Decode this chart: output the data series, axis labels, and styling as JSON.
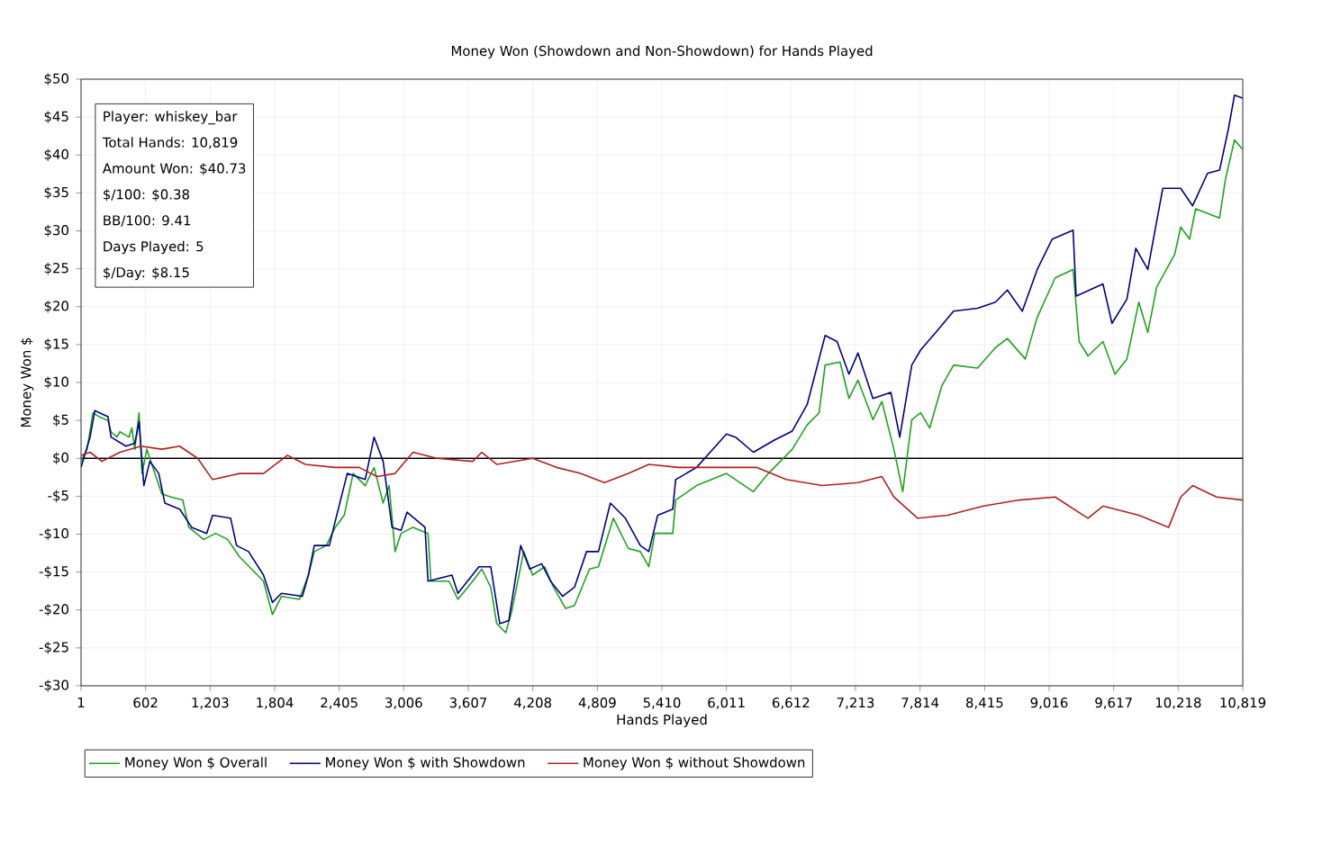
{
  "chart_data": {
    "type": "line",
    "title": "Money Won (Showdown and Non-Showdown) for Hands Played",
    "xlabel": "Hands Played",
    "ylabel": "Money Won $",
    "annotations": [
      "Player: whiskey_bar",
      "Total Hands: 10,819",
      "Amount Won: $40.73",
      "$/100: $0.38",
      "BB/100: 9.41",
      "Days Played: 5",
      "$/Day: $8.15"
    ],
    "xlim": [
      1,
      10819
    ],
    "ylim": [
      -30,
      50
    ],
    "xticks": [
      1,
      602,
      {
        "value": 1203,
        "label": "1,203"
      },
      {
        "value": 1804,
        "label": "1,804"
      },
      {
        "value": 2405,
        "label": "2,405"
      },
      {
        "value": 3006,
        "label": "3,006"
      },
      {
        "value": 3607,
        "label": "3,607"
      },
      {
        "value": 4208,
        "label": "4,208"
      },
      {
        "value": 4809,
        "label": "4,809"
      },
      {
        "value": 5410,
        "label": "5,410"
      },
      {
        "value": 6011,
        "label": "6,011"
      },
      {
        "value": 6612,
        "label": "6,612"
      },
      {
        "value": 7213,
        "label": "7,213"
      },
      {
        "value": 7814,
        "label": "7,814"
      },
      {
        "value": 8415,
        "label": "8,415"
      },
      {
        "value": 9016,
        "label": "9,016"
      },
      {
        "value": 9617,
        "label": "9,617"
      },
      {
        "value": 10218,
        "label": "10,218"
      },
      {
        "value": 10819,
        "label": "10,819"
      }
    ],
    "yticks": [
      {
        "value": -30,
        "label": "-$30"
      },
      {
        "value": -25,
        "label": "-$25"
      },
      {
        "value": -20,
        "label": "-$20"
      },
      {
        "value": -15,
        "label": "-$15"
      },
      {
        "value": -10,
        "label": "-$10"
      },
      {
        "value": -5,
        "label": "-$5"
      },
      {
        "value": 0,
        "label": "$0"
      },
      {
        "value": 5,
        "label": "$5"
      },
      {
        "value": 10,
        "label": "$10"
      },
      {
        "value": 15,
        "label": "$15"
      },
      {
        "value": 20,
        "label": "$20"
      },
      {
        "value": 25,
        "label": "$25"
      },
      {
        "value": 30,
        "label": "$30"
      },
      {
        "value": 35,
        "label": "$35"
      },
      {
        "value": 40,
        "label": "$40"
      },
      {
        "value": 45,
        "label": "$45"
      },
      {
        "value": 50,
        "label": "$50"
      }
    ],
    "grid": true,
    "legend": "bottom",
    "marker": "none",
    "line_style": "solid",
    "ref_lines": [
      {
        "axis": "y",
        "value": 0,
        "color": "#000000"
      }
    ],
    "series": [
      {
        "name": "Money Won $ Overall",
        "color": "#21a121",
        "x": [
          1,
          57,
          112,
          168,
          252,
          280,
          335,
          363,
          447,
          474,
          502,
          541,
          569,
          614,
          669,
          753,
          837,
          948,
          1004,
          1143,
          1254,
          1366,
          1477,
          1588,
          1700,
          1783,
          1867,
          2034,
          2118,
          2173,
          2285,
          2368,
          2452,
          2535,
          2647,
          2730,
          2814,
          2870,
          2925,
          2981,
          3092,
          3232,
          3259,
          3427,
          3510,
          3649,
          3733,
          3816,
          3872,
          3956,
          4011,
          4123,
          4206,
          4318,
          4401,
          4513,
          4596,
          4736,
          4819,
          4958,
          5098,
          5209,
          5288,
          5344,
          5511,
          5538,
          5733,
          6011,
          6095,
          6262,
          6401,
          6624,
          6763,
          6874,
          6930,
          7069,
          7152,
          7236,
          7375,
          7458,
          7570,
          7653,
          7737,
          7820,
          7904,
          8015,
          8126,
          8349,
          8516,
          8627,
          8794,
          8905,
          9072,
          9239,
          9295,
          9378,
          9517,
          9629,
          9740,
          9851,
          9935,
          10018,
          10185,
          10241,
          10324,
          10380,
          10603,
          10658,
          10742,
          10819
        ],
        "values": [
          -0.4,
          1.2,
          6,
          5.5,
          5,
          3.5,
          2.8,
          3.5,
          2.8,
          4,
          1.2,
          6,
          -2,
          1.2,
          -1.2,
          -4.7,
          -5.1,
          -5.5,
          -9.1,
          -10.7,
          -9.9,
          -10.7,
          -13,
          -14.6,
          -16.2,
          -20.6,
          -18.2,
          -18.6,
          -15.4,
          -12.3,
          -11.5,
          -9.1,
          -7.5,
          -2,
          -3.6,
          -1.2,
          -5.9,
          -3.6,
          -12.3,
          -9.9,
          -9.1,
          -9.9,
          -16.2,
          -16.2,
          -18.6,
          -16.2,
          -14.6,
          -17,
          -21.8,
          -23,
          -20.2,
          -12.3,
          -15.4,
          -14.3,
          -17,
          -19.8,
          -19.4,
          -14.6,
          -14.3,
          -7.9,
          -11.9,
          -12.3,
          -14.3,
          -9.9,
          -9.9,
          -5.5,
          -3.6,
          -2,
          -2.8,
          -4.4,
          -2,
          1.2,
          4.4,
          6,
          12.3,
          12.7,
          7.9,
          10.3,
          5.1,
          7.5,
          1.2,
          -4.4,
          5.1,
          6,
          4,
          9.5,
          12.3,
          11.9,
          14.6,
          15.8,
          13.1,
          18.6,
          23.8,
          24.9,
          15.4,
          13.5,
          15.4,
          11.1,
          13.1,
          20.6,
          16.6,
          22.6,
          26.9,
          30.5,
          28.9,
          32.9,
          31.7,
          36.8,
          42,
          40.7
        ]
      },
      {
        "name": "Money Won $ with Showdown",
        "color": "#000080",
        "x": [
          1,
          85,
          129,
          252,
          280,
          419,
          502,
          541,
          586,
          642,
          725,
          781,
          920,
          1031,
          1171,
          1226,
          1394,
          1449,
          1561,
          1700,
          1783,
          1867,
          2062,
          2118,
          2173,
          2313,
          2368,
          2480,
          2647,
          2730,
          2814,
          2897,
          2981,
          3037,
          3204,
          3232,
          3455,
          3510,
          3706,
          3816,
          3900,
          3984,
          4095,
          4179,
          4290,
          4373,
          4485,
          4596,
          4708,
          4819,
          4930,
          5070,
          5209,
          5288,
          5371,
          5511,
          5538,
          5733,
          6011,
          6095,
          6262,
          6457,
          6624,
          6763,
          6930,
          7041,
          7152,
          7236,
          7375,
          7542,
          7625,
          7737,
          7820,
          7959,
          8126,
          8349,
          8516,
          8627,
          8766,
          8905,
          9044,
          9239,
          9267,
          9517,
          9601,
          9740,
          9823,
          9935,
          10074,
          10241,
          10352,
          10491,
          10603,
          10686,
          10742,
          10819
        ],
        "values": [
          -1.2,
          2.8,
          6.3,
          5.5,
          2.8,
          1.6,
          2,
          4.8,
          -3.6,
          -0.4,
          -2,
          -5.9,
          -6.7,
          -9.1,
          -9.9,
          -7.5,
          -7.9,
          -11.5,
          -12.3,
          -15.4,
          -19,
          -17.8,
          -18.2,
          -15.4,
          -11.5,
          -11.5,
          -8.3,
          -2,
          -2.8,
          2.8,
          -0.4,
          -9.1,
          -9.5,
          -7.1,
          -9.1,
          -16.2,
          -15.4,
          -17.8,
          -14.3,
          -14.3,
          -21.8,
          -21.4,
          -11.5,
          -14.6,
          -13.9,
          -16.2,
          -18.2,
          -17,
          -12.3,
          -12.3,
          -5.9,
          -7.9,
          -11.5,
          -12.3,
          -7.5,
          -6.7,
          -2.8,
          -1.2,
          3.2,
          2.8,
          0.8,
          2.4,
          3.6,
          7.1,
          16.2,
          15.4,
          11.1,
          13.9,
          7.9,
          8.7,
          2.8,
          12.3,
          14.3,
          16.6,
          19.4,
          19.8,
          20.6,
          22.2,
          19.4,
          24.9,
          28.9,
          30.1,
          21.4,
          23,
          17.8,
          21,
          27.7,
          24.9,
          35.6,
          35.6,
          33.3,
          37.6,
          38,
          43.5,
          47.9,
          47.5
        ]
      },
      {
        "name": "Money Won $ without Showdown",
        "color": "#b02020",
        "x": [
          1,
          85,
          196,
          363,
          558,
          753,
          920,
          1087,
          1226,
          1477,
          1700,
          1923,
          2090,
          2368,
          2591,
          2758,
          2925,
          3092,
          3315,
          3649,
          3733,
          3872,
          4206,
          4429,
          4652,
          4875,
          5098,
          5288,
          5566,
          6011,
          6290,
          6568,
          6902,
          7236,
          7458,
          7570,
          7792,
          8071,
          8404,
          8738,
          9072,
          9378,
          9517,
          9851,
          10129,
          10241,
          10352,
          10575,
          10819
        ],
        "values": [
          0.4,
          0.8,
          -0.4,
          0.8,
          1.6,
          1.2,
          1.6,
          0,
          -2.8,
          -2,
          -2,
          0.4,
          -0.8,
          -1.2,
          -1.2,
          -2.4,
          -2,
          0.8,
          0,
          -0.4,
          0.8,
          -0.8,
          0,
          -1.2,
          -2,
          -3.2,
          -2,
          -0.8,
          -1.2,
          -1.2,
          -1.2,
          -2.8,
          -3.6,
          -3.2,
          -2.4,
          -5.1,
          -7.9,
          -7.5,
          -6.3,
          -5.5,
          -5.1,
          -7.9,
          -6.3,
          -7.5,
          -9.1,
          -5.1,
          -3.6,
          -5.1,
          -5.5
        ]
      }
    ]
  }
}
